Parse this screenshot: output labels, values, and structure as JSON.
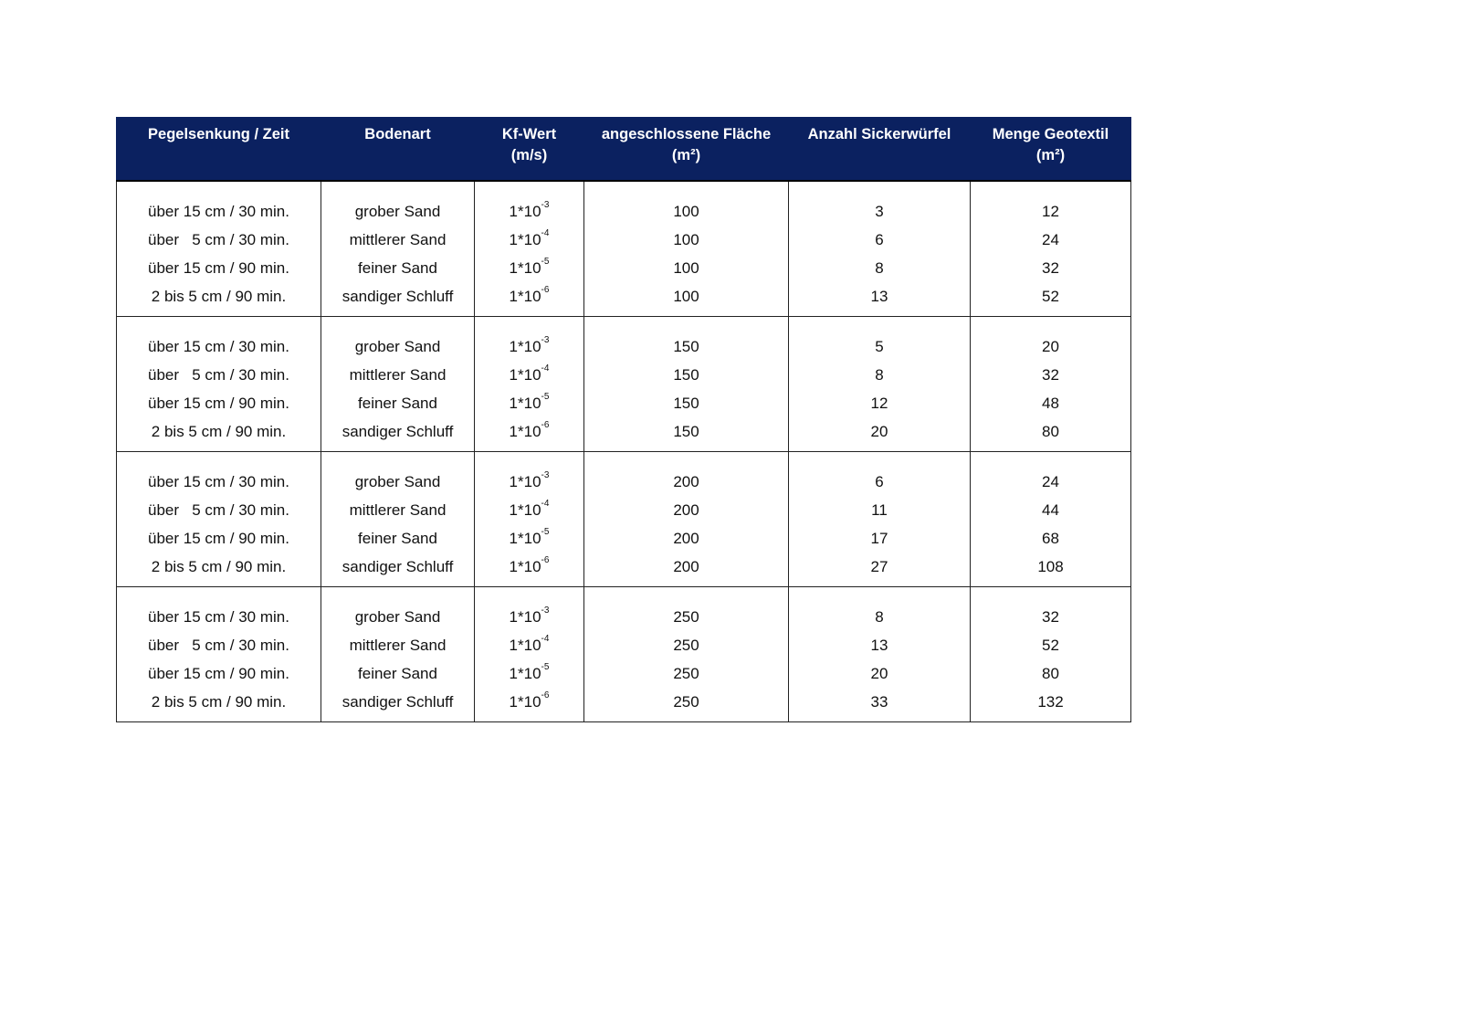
{
  "table": {
    "header_color": "#0b2160",
    "headers": [
      {
        "label": "Pegelsenkung / Zeit",
        "unit": ""
      },
      {
        "label": "Bodenart",
        "unit": ""
      },
      {
        "label": "Kf-Wert",
        "unit": "(m/s)"
      },
      {
        "label": "angeschlossene Fläche",
        "unit": "(m²)"
      },
      {
        "label": "Anzahl Sickerwürfel",
        "unit": ""
      },
      {
        "label": "Menge Geotextil",
        "unit": "(m²)"
      }
    ],
    "pegel": [
      "über 15 cm / 30 min.",
      "über   5 cm / 30 min.",
      "über 15 cm / 90 min.",
      "2 bis 5 cm / 90 min."
    ],
    "boden": [
      "grober Sand",
      "mittlerer Sand",
      "feiner Sand",
      "sandiger Schluff"
    ],
    "kf_base": "1*10",
    "kf_exp": [
      "-3",
      "-4",
      "-5",
      "-6"
    ],
    "groups": [
      {
        "flaeche": "100",
        "wuerfel": [
          "3",
          "6",
          "8",
          "13"
        ],
        "geotextil": [
          "12",
          "24",
          "32",
          "52"
        ]
      },
      {
        "flaeche": "150",
        "wuerfel": [
          "5",
          "8",
          "12",
          "20"
        ],
        "geotextil": [
          "20",
          "32",
          "48",
          "80"
        ]
      },
      {
        "flaeche": "200",
        "wuerfel": [
          "6",
          "11",
          "17",
          "27"
        ],
        "geotextil": [
          "24",
          "44",
          "68",
          "108"
        ]
      },
      {
        "flaeche": "250",
        "wuerfel": [
          "8",
          "13",
          "20",
          "33"
        ],
        "geotextil": [
          "32",
          "52",
          "80",
          "132"
        ]
      }
    ]
  }
}
